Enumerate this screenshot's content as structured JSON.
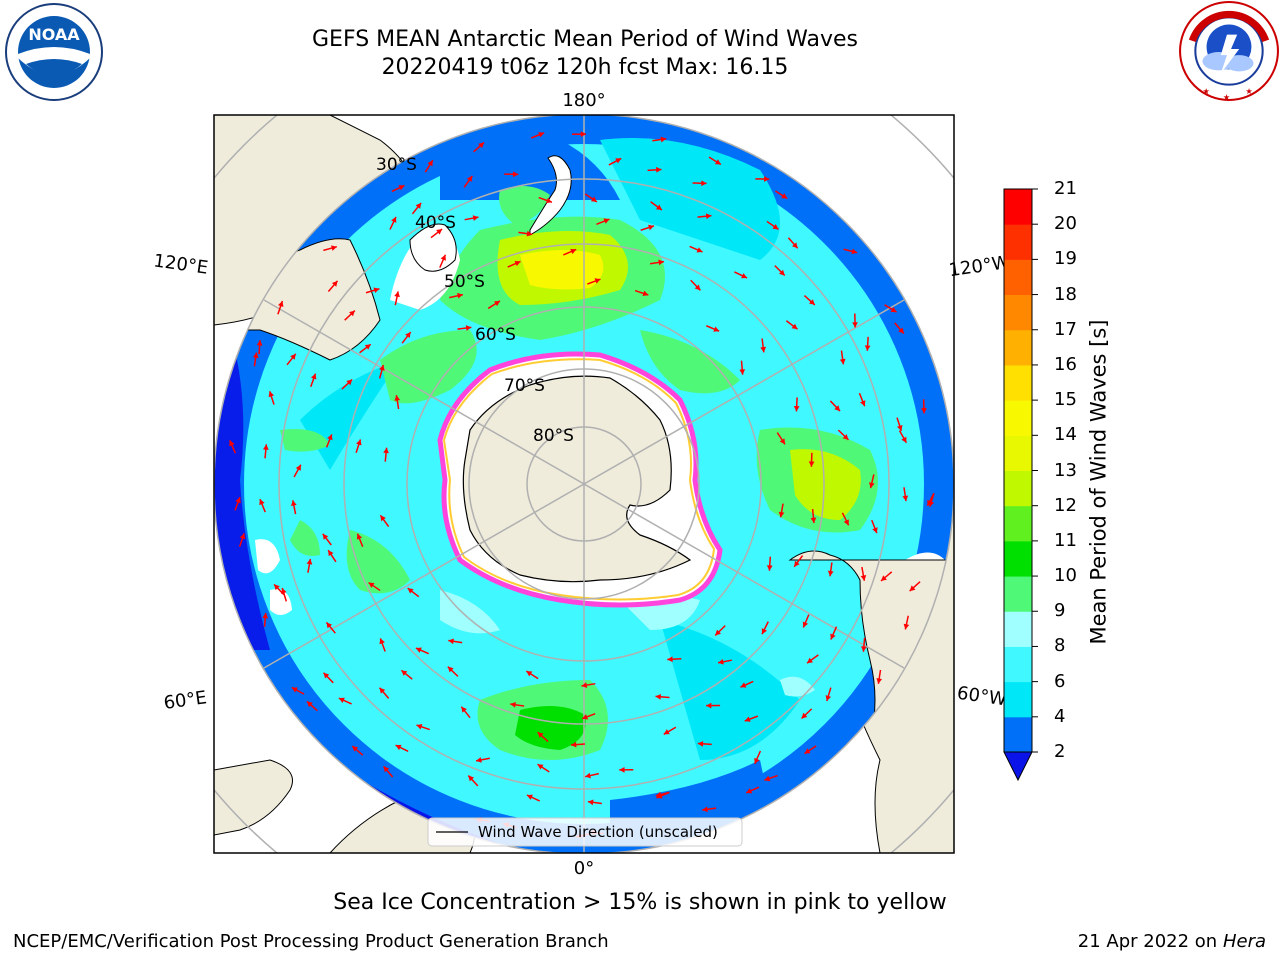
{
  "header": {
    "title_line1": "GEFS MEAN Antarctic Mean Period of Wind Waves",
    "title_line2": "20220419 t06z 120h fcst   Max: 16.15"
  },
  "map": {
    "projection": "south polar stereographic",
    "longitude_labels": {
      "top": "180°",
      "bottom": "0°",
      "upper_left": "120°E",
      "upper_right": "120°W",
      "lower_left": "60°E",
      "lower_right": "60°W"
    },
    "latitude_labels": [
      "30°S",
      "40°S",
      "50°S",
      "60°S",
      "70°S",
      "80°S"
    ],
    "legend": "Wind Wave Direction (unscaled)",
    "colors": {
      "land": "#efecdc",
      "grid": "#b0b0b0",
      "arrow": "#ff0000",
      "ice_edge_outer": "#ff44dd",
      "ice_edge_inner": "#ffcc33"
    }
  },
  "colorbar": {
    "label": "Mean Period of Wind Waves [s]",
    "ticks": [
      "2",
      "4",
      "6",
      "8",
      "9",
      "10",
      "11",
      "12",
      "13",
      "14",
      "15",
      "16",
      "17",
      "18",
      "19",
      "20",
      "21"
    ],
    "colors": [
      "#0070f8",
      "#00e8f8",
      "#40f8ff",
      "#a0ffff",
      "#50f878",
      "#00e000",
      "#60f020",
      "#c0f800",
      "#e8f800",
      "#f8f800",
      "#ffe000",
      "#ffb000",
      "#ff8800",
      "#ff6000",
      "#ff3000",
      "#ff0000"
    ],
    "under_color": "#0a14e8"
  },
  "caption": "Sea Ice Concentration > 15% is shown in pink to yellow",
  "footer": {
    "left": "NCEP/EMC/Verification Post Processing Product Generation Branch",
    "right_date": "21 Apr 2022 on ",
    "right_host": "Hera"
  }
}
